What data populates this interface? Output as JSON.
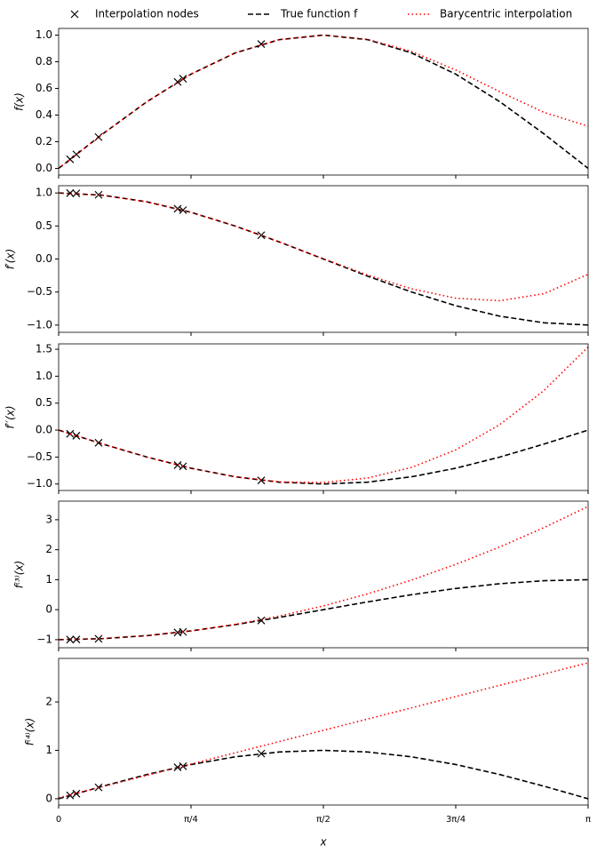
{
  "chart_data": [
    {
      "type": "line",
      "ylabel": "f(x)",
      "xlim": [
        0,
        3.1416
      ],
      "xticks": [
        0,
        0.7854,
        1.5708,
        2.3562,
        3.1416
      ],
      "ylim": [
        -0.05,
        1.05
      ],
      "yticks": [
        {
          "value": 0,
          "label": "0.0"
        },
        0.2,
        0.4,
        0.6,
        0.8,
        {
          "value": 1,
          "label": "1.0"
        }
      ],
      "legend": "top",
      "series": [
        {
          "name": "Interpolation nodes",
          "color": "#000000",
          "marker": "x",
          "x": [
            0.068,
            0.105,
            0.237,
            0.706,
            0.738,
            1.202
          ],
          "values": [
            0.068,
            0.105,
            0.235,
            0.649,
            0.673,
            0.933
          ]
        },
        {
          "name": "True function f",
          "color": "#000000",
          "linestyle": "dashed",
          "x": [
            0,
            0.2618,
            0.5236,
            0.7854,
            1.0472,
            1.309,
            1.5708,
            1.8326,
            2.0944,
            2.3562,
            2.618,
            2.8798,
            3.1416
          ],
          "values": [
            0,
            0.2588,
            0.5,
            0.7071,
            0.866,
            0.9659,
            1,
            0.9659,
            0.866,
            0.7071,
            0.5,
            0.2588,
            0
          ]
        },
        {
          "name": "Barycentric interpolation",
          "color": "#ff0000",
          "linestyle": "dotted",
          "x": [
            0,
            0.2618,
            0.5236,
            0.7854,
            1.0472,
            1.309,
            1.5708,
            1.8326,
            2.0944,
            2.3562,
            2.618,
            2.8798,
            3.1416
          ],
          "values": [
            0,
            0.2588,
            0.5,
            0.7072,
            0.8661,
            0.966,
            1.0005,
            0.9688,
            0.8768,
            0.7381,
            0.5751,
            0.42,
            0.3164
          ]
        }
      ]
    },
    {
      "type": "line",
      "ylabel": "f′(x)",
      "xlim": [
        0,
        3.1416
      ],
      "xticks": [
        0,
        0.7854,
        1.5708,
        2.3562,
        3.1416
      ],
      "ylim": [
        -1.11,
        1.11
      ],
      "yticks": [
        {
          "value": -1,
          "label": "−1.0"
        },
        {
          "value": -0.5,
          "label": "−0.5"
        },
        {
          "value": 0,
          "label": "0.0"
        },
        0.5,
        {
          "value": 1,
          "label": "1.0"
        }
      ],
      "series": [
        {
          "color": "#000000",
          "marker": "x",
          "x": [
            0.068,
            0.105,
            0.237,
            0.706,
            0.738,
            1.202
          ],
          "values": [
            0.998,
            0.994,
            0.972,
            0.761,
            0.74,
            0.36
          ]
        },
        {
          "color": "#000000",
          "linestyle": "dashed",
          "x": [
            0,
            0.2618,
            0.5236,
            0.7854,
            1.0472,
            1.309,
            1.5708,
            1.8326,
            2.0944,
            2.3562,
            2.618,
            2.8798,
            3.1416
          ],
          "values": [
            1,
            0.9659,
            0.866,
            0.7071,
            0.5,
            0.2588,
            0,
            -0.2588,
            -0.5,
            -0.7071,
            -0.866,
            -0.9659,
            -1
          ]
        },
        {
          "color": "#ff0000",
          "linestyle": "dotted",
          "x": [
            0,
            0.2618,
            0.5236,
            0.7854,
            1.0472,
            1.309,
            1.5708,
            1.8326,
            2.0944,
            2.3562,
            2.618,
            2.8798,
            3.1416
          ],
          "values": [
            1,
            0.966,
            0.8662,
            0.7072,
            0.4999,
            0.2591,
            0.004,
            -0.2422,
            -0.4519,
            -0.5936,
            -0.6314,
            -0.5254,
            -0.2314
          ]
        }
      ]
    },
    {
      "type": "line",
      "ylabel": "f′′(x)",
      "xlim": [
        0,
        3.1416
      ],
      "xticks": [
        0,
        0.7854,
        1.5708,
        2.3562,
        3.1416
      ],
      "ylim": [
        -1.12,
        1.6
      ],
      "yticks": [
        {
          "value": -1,
          "label": "−1.0"
        },
        {
          "value": -0.5,
          "label": "−0.5"
        },
        {
          "value": 0,
          "label": "0.0"
        },
        0.5,
        {
          "value": 1,
          "label": "1.0"
        },
        1.5
      ],
      "series": [
        {
          "color": "#000000",
          "marker": "x",
          "x": [
            0.068,
            0.105,
            0.237,
            0.706,
            0.738,
            1.202
          ],
          "values": [
            -0.068,
            -0.105,
            -0.235,
            -0.649,
            -0.673,
            -0.933
          ]
        },
        {
          "color": "#000000",
          "linestyle": "dashed",
          "x": [
            0,
            0.2618,
            0.5236,
            0.7854,
            1.0472,
            1.309,
            1.5708,
            1.8326,
            2.0944,
            2.3562,
            2.618,
            2.8798,
            3.1416
          ],
          "values": [
            0,
            -0.2588,
            -0.5,
            -0.7071,
            -0.866,
            -0.9659,
            -1,
            -0.9659,
            -0.866,
            -0.7071,
            -0.5,
            -0.2588,
            0
          ]
        },
        {
          "color": "#ff0000",
          "linestyle": "dotted",
          "x": [
            0,
            0.2618,
            0.5236,
            0.7854,
            1.0472,
            1.309,
            1.5708,
            1.8326,
            2.0944,
            2.3562,
            2.618,
            2.8798,
            3.1416
          ],
          "values": [
            0,
            -0.2585,
            -0.4997,
            -0.7078,
            -0.8667,
            -0.9606,
            -0.9735,
            -0.8895,
            -0.6926,
            -0.3669,
            0.1034,
            0.7346,
            1.5421
          ]
        }
      ]
    },
    {
      "type": "line",
      "ylabel": "f⁽³⁾(x)",
      "xlim": [
        0,
        3.1416
      ],
      "xticks": [
        0,
        0.7854,
        1.5708,
        2.3562,
        3.1416
      ],
      "ylim": [
        -1.27,
        3.62
      ],
      "yticks": [
        {
          "value": -1,
          "label": "−1"
        },
        0,
        1,
        2,
        3
      ],
      "series": [
        {
          "color": "#000000",
          "marker": "x",
          "x": [
            0.068,
            0.105,
            0.237,
            0.706,
            0.738,
            1.202
          ],
          "values": [
            -0.998,
            -0.994,
            -0.972,
            -0.761,
            -0.74,
            -0.36
          ]
        },
        {
          "color": "#000000",
          "linestyle": "dashed",
          "x": [
            0,
            0.2618,
            0.5236,
            0.7854,
            1.0472,
            1.309,
            1.5708,
            1.8326,
            2.0944,
            2.3562,
            2.618,
            2.8798,
            3.1416
          ],
          "values": [
            -1,
            -0.9659,
            -0.866,
            -0.7071,
            -0.5,
            -0.2588,
            0,
            0.2588,
            0.5,
            0.7071,
            0.866,
            0.9659,
            1
          ]
        },
        {
          "color": "#ff0000",
          "linestyle": "dotted",
          "x": [
            0,
            0.2618,
            0.5236,
            0.7854,
            1.0472,
            1.309,
            1.5708,
            1.8326,
            2.0944,
            2.3562,
            2.618,
            2.8798,
            3.1416
          ],
          "values": [
            -1,
            -0.9645,
            -0.8682,
            -0.711,
            -0.493,
            -0.2141,
            0.1257,
            0.5263,
            0.9878,
            1.5102,
            2.0934,
            2.7376,
            3.4424
          ]
        }
      ]
    },
    {
      "type": "line",
      "ylabel": "f⁽⁴⁾(x)",
      "xlabel": "x",
      "xlim": [
        0,
        3.1416
      ],
      "xticks": [
        0,
        {
          "value": 0.7854,
          "label": "π/4"
        },
        {
          "value": 1.5708,
          "label": "π/2"
        },
        {
          "value": 2.3562,
          "label": "3π/4"
        },
        {
          "value": 3.1416,
          "label": "π"
        }
      ],
      "ylim": [
        -0.13,
        2.9
      ],
      "yticks": [
        0,
        1,
        2
      ],
      "series": [
        {
          "color": "#000000",
          "marker": "x",
          "x": [
            0.068,
            0.105,
            0.237,
            0.706,
            0.738,
            1.202
          ],
          "values": [
            0.068,
            0.105,
            0.235,
            0.649,
            0.673,
            0.933
          ]
        },
        {
          "color": "#000000",
          "linestyle": "dashed",
          "x": [
            0,
            0.2618,
            0.5236,
            0.7854,
            1.0472,
            1.309,
            1.5708,
            1.8326,
            2.0944,
            2.3562,
            2.618,
            2.8798,
            3.1416
          ],
          "values": [
            0,
            0.2588,
            0.5,
            0.7071,
            0.866,
            0.9659,
            1,
            0.9659,
            0.866,
            0.7071,
            0.5,
            0.2588,
            0
          ]
        },
        {
          "color": "#ff0000",
          "linestyle": "dotted",
          "x": [
            0,
            0.2618,
            0.5236,
            0.7854,
            1.0472,
            1.309,
            1.5708,
            1.8326,
            2.0944,
            2.3562,
            2.618,
            2.8798,
            3.1416
          ],
          "values": [
            0.0192,
            0.2517,
            0.4842,
            0.7166,
            0.9491,
            1.1816,
            1.4141,
            1.6465,
            1.879,
            2.1115,
            2.344,
            2.5765,
            2.809
          ]
        }
      ]
    }
  ]
}
